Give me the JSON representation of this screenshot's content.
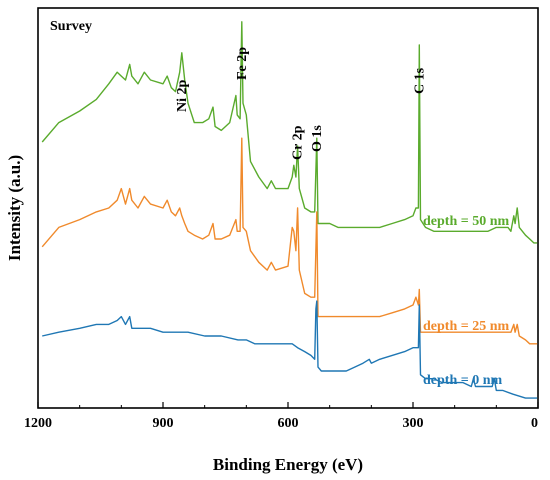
{
  "chart_data": {
    "type": "line",
    "title": "Survey",
    "xlabel": "Binding Energy (eV)",
    "ylabel": "Intensity (a.u.)",
    "xlim": [
      1200,
      0
    ],
    "x_reversed": true,
    "xticks": [
      {
        "value": 1200,
        "label": "1200"
      },
      {
        "value": 900,
        "label": "900"
      },
      {
        "value": 600,
        "label": "600"
      },
      {
        "value": 300,
        "label": "300"
      },
      {
        "value": 0,
        "label": "0"
      }
    ],
    "y_ticks_shown": false,
    "grid": false,
    "legend": "none",
    "peak_labels": [
      {
        "text": "Ni 2p",
        "x": 855
      },
      {
        "text": "Fe 2p",
        "x": 710
      },
      {
        "text": "Cr 2p",
        "x": 577
      },
      {
        "text": "O 1s",
        "x": 531
      },
      {
        "text": "C 1s",
        "x": 285
      }
    ],
    "series": [
      {
        "name": "depth = 50 nm",
        "color": "#5aab2d",
        "points": [
          [
            1190,
            0.67
          ],
          [
            1150,
            0.72
          ],
          [
            1100,
            0.75
          ],
          [
            1060,
            0.78
          ],
          [
            1030,
            0.82
          ],
          [
            1010,
            0.85
          ],
          [
            1000,
            0.84
          ],
          [
            990,
            0.83
          ],
          [
            980,
            0.87
          ],
          [
            975,
            0.84
          ],
          [
            960,
            0.82
          ],
          [
            945,
            0.85
          ],
          [
            930,
            0.83
          ],
          [
            900,
            0.82
          ],
          [
            890,
            0.84
          ],
          [
            880,
            0.81
          ],
          [
            870,
            0.8
          ],
          [
            860,
            0.85
          ],
          [
            855,
            0.9
          ],
          [
            848,
            0.83
          ],
          [
            840,
            0.77
          ],
          [
            825,
            0.72
          ],
          [
            805,
            0.72
          ],
          [
            790,
            0.73
          ],
          [
            780,
            0.76
          ],
          [
            775,
            0.71
          ],
          [
            760,
            0.7
          ],
          [
            740,
            0.72
          ],
          [
            725,
            0.79
          ],
          [
            722,
            0.74
          ],
          [
            715,
            0.73
          ],
          [
            711,
            0.98
          ],
          [
            708,
            0.77
          ],
          [
            700,
            0.74
          ],
          [
            690,
            0.62
          ],
          [
            670,
            0.58
          ],
          [
            650,
            0.55
          ],
          [
            640,
            0.57
          ],
          [
            630,
            0.55
          ],
          [
            600,
            0.55
          ],
          [
            590,
            0.58
          ],
          [
            586,
            0.61
          ],
          [
            581,
            0.58
          ],
          [
            577,
            0.66
          ],
          [
            573,
            0.55
          ],
          [
            560,
            0.5
          ],
          [
            545,
            0.49
          ],
          [
            536,
            0.49
          ],
          [
            531,
            0.68
          ],
          [
            528,
            0.46
          ],
          [
            520,
            0.46
          ],
          [
            500,
            0.46
          ],
          [
            480,
            0.45
          ],
          [
            460,
            0.45
          ],
          [
            440,
            0.45
          ],
          [
            420,
            0.45
          ],
          [
            400,
            0.45
          ],
          [
            380,
            0.45
          ],
          [
            350,
            0.46
          ],
          [
            320,
            0.47
          ],
          [
            300,
            0.48
          ],
          [
            293,
            0.5
          ],
          [
            287,
            0.5
          ],
          [
            285,
            0.92
          ],
          [
            282,
            0.47
          ],
          [
            270,
            0.45
          ],
          [
            250,
            0.44
          ],
          [
            230,
            0.44
          ],
          [
            200,
            0.44
          ],
          [
            180,
            0.44
          ],
          [
            150,
            0.44
          ],
          [
            120,
            0.44
          ],
          [
            100,
            0.45
          ],
          [
            85,
            0.45
          ],
          [
            72,
            0.45
          ],
          [
            65,
            0.44
          ],
          [
            58,
            0.48
          ],
          [
            55,
            0.46
          ],
          [
            50,
            0.5
          ],
          [
            45,
            0.45
          ],
          [
            30,
            0.43
          ],
          [
            20,
            0.42
          ],
          [
            10,
            0.41
          ],
          [
            2,
            0.41
          ]
        ]
      },
      {
        "name": "depth = 25 nm",
        "color": "#f08a2c",
        "points": [
          [
            1190,
            0.4
          ],
          [
            1150,
            0.45
          ],
          [
            1100,
            0.47
          ],
          [
            1060,
            0.49
          ],
          [
            1030,
            0.5
          ],
          [
            1010,
            0.52
          ],
          [
            1000,
            0.55
          ],
          [
            990,
            0.51
          ],
          [
            980,
            0.55
          ],
          [
            975,
            0.52
          ],
          [
            960,
            0.5
          ],
          [
            945,
            0.53
          ],
          [
            930,
            0.51
          ],
          [
            900,
            0.5
          ],
          [
            890,
            0.52
          ],
          [
            880,
            0.49
          ],
          [
            870,
            0.48
          ],
          [
            860,
            0.5
          ],
          [
            855,
            0.48
          ],
          [
            848,
            0.46
          ],
          [
            840,
            0.44
          ],
          [
            825,
            0.43
          ],
          [
            805,
            0.42
          ],
          [
            790,
            0.43
          ],
          [
            780,
            0.46
          ],
          [
            775,
            0.42
          ],
          [
            760,
            0.42
          ],
          [
            740,
            0.43
          ],
          [
            725,
            0.47
          ],
          [
            722,
            0.44
          ],
          [
            715,
            0.44
          ],
          [
            711,
            0.68
          ],
          [
            708,
            0.45
          ],
          [
            700,
            0.44
          ],
          [
            690,
            0.39
          ],
          [
            670,
            0.36
          ],
          [
            650,
            0.34
          ],
          [
            640,
            0.36
          ],
          [
            630,
            0.34
          ],
          [
            600,
            0.35
          ],
          [
            590,
            0.45
          ],
          [
            586,
            0.44
          ],
          [
            581,
            0.39
          ],
          [
            577,
            0.5
          ],
          [
            573,
            0.34
          ],
          [
            560,
            0.28
          ],
          [
            545,
            0.27
          ],
          [
            536,
            0.27
          ],
          [
            531,
            0.49
          ],
          [
            528,
            0.22
          ],
          [
            520,
            0.22
          ],
          [
            500,
            0.22
          ],
          [
            480,
            0.22
          ],
          [
            460,
            0.22
          ],
          [
            440,
            0.22
          ],
          [
            420,
            0.22
          ],
          [
            400,
            0.22
          ],
          [
            380,
            0.22
          ],
          [
            350,
            0.23
          ],
          [
            320,
            0.24
          ],
          [
            300,
            0.25
          ],
          [
            293,
            0.27
          ],
          [
            287,
            0.25
          ],
          [
            285,
            0.29
          ],
          [
            282,
            0.18
          ],
          [
            270,
            0.18
          ],
          [
            250,
            0.18
          ],
          [
            230,
            0.18
          ],
          [
            200,
            0.18
          ],
          [
            180,
            0.18
          ],
          [
            150,
            0.18
          ],
          [
            120,
            0.18
          ],
          [
            100,
            0.18
          ],
          [
            85,
            0.18
          ],
          [
            72,
            0.18
          ],
          [
            65,
            0.18
          ],
          [
            58,
            0.2
          ],
          [
            55,
            0.18
          ],
          [
            50,
            0.2
          ],
          [
            45,
            0.17
          ],
          [
            30,
            0.16
          ],
          [
            20,
            0.15
          ],
          [
            10,
            0.15
          ],
          [
            2,
            0.15
          ]
        ]
      },
      {
        "name": "depth = 0 nm",
        "color": "#1f77b4",
        "points": [
          [
            1190,
            0.17
          ],
          [
            1150,
            0.18
          ],
          [
            1100,
            0.19
          ],
          [
            1060,
            0.2
          ],
          [
            1030,
            0.2
          ],
          [
            1010,
            0.21
          ],
          [
            1000,
            0.22
          ],
          [
            990,
            0.2
          ],
          [
            980,
            0.22
          ],
          [
            975,
            0.19
          ],
          [
            960,
            0.19
          ],
          [
            945,
            0.19
          ],
          [
            930,
            0.19
          ],
          [
            900,
            0.18
          ],
          [
            870,
            0.18
          ],
          [
            840,
            0.18
          ],
          [
            800,
            0.17
          ],
          [
            760,
            0.17
          ],
          [
            720,
            0.16
          ],
          [
            700,
            0.16
          ],
          [
            680,
            0.15
          ],
          [
            660,
            0.15
          ],
          [
            640,
            0.15
          ],
          [
            620,
            0.15
          ],
          [
            600,
            0.15
          ],
          [
            590,
            0.15
          ],
          [
            577,
            0.14
          ],
          [
            560,
            0.13
          ],
          [
            545,
            0.12
          ],
          [
            536,
            0.11
          ],
          [
            533,
            0.24
          ],
          [
            531,
            0.26
          ],
          [
            528,
            0.09
          ],
          [
            520,
            0.08
          ],
          [
            500,
            0.08
          ],
          [
            480,
            0.08
          ],
          [
            460,
            0.08
          ],
          [
            440,
            0.09
          ],
          [
            420,
            0.1
          ],
          [
            405,
            0.11
          ],
          [
            400,
            0.1
          ],
          [
            380,
            0.11
          ],
          [
            350,
            0.12
          ],
          [
            320,
            0.13
          ],
          [
            300,
            0.14
          ],
          [
            290,
            0.14
          ],
          [
            287,
            0.14
          ],
          [
            285,
            0.25
          ],
          [
            282,
            0.07
          ],
          [
            270,
            0.06
          ],
          [
            250,
            0.06
          ],
          [
            230,
            0.05
          ],
          [
            200,
            0.05
          ],
          [
            180,
            0.05
          ],
          [
            160,
            0.04
          ],
          [
            155,
            0.06
          ],
          [
            150,
            0.04
          ],
          [
            130,
            0.04
          ],
          [
            110,
            0.04
          ],
          [
            105,
            0.06
          ],
          [
            100,
            0.03
          ],
          [
            85,
            0.03
          ],
          [
            60,
            0.02
          ],
          [
            30,
            0.01
          ],
          [
            10,
            0.01
          ],
          [
            2,
            0.01
          ]
        ]
      }
    ]
  }
}
